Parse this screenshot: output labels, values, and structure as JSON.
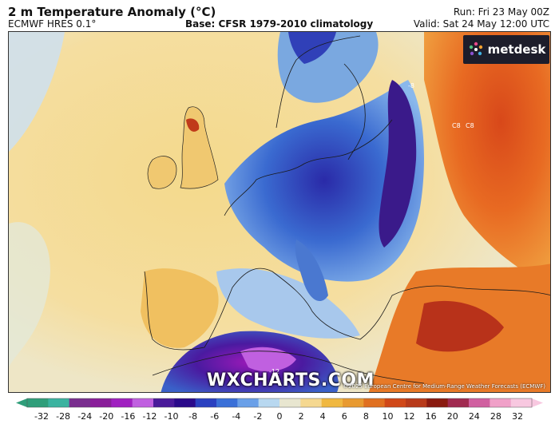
{
  "header": {
    "title": "2 m Temperature Anomaly (°C)",
    "model": "ECMWF HRES 0.1°",
    "base": "Base: CFSR 1979-2010 climatology",
    "run": "Run: Fri 23 May 00Z",
    "valid": "Valid: Sat 24 May 12:00 UTC"
  },
  "logo": {
    "text": "metdesk",
    "icon": "metdesk-logo-icon"
  },
  "watermark": "WXCHARTS.COM",
  "copyright": "©2025 European Centre for Medium-Range Weather Forecasts (ECMWF)",
  "map": {
    "contour_labels": [
      "-8",
      "C8",
      "C8",
      "-12"
    ]
  },
  "colorbar": {
    "ticks": [
      "-32",
      "-28",
      "-24",
      "-20",
      "-16",
      "-12",
      "-10",
      "-8",
      "-6",
      "-4",
      "-2",
      "0",
      "2",
      "4",
      "6",
      "8",
      "10",
      "12",
      "16",
      "20",
      "24",
      "28",
      "32"
    ],
    "colors": [
      "#2f9e7a",
      "#3bb3a0",
      "#7a2e8f",
      "#8a1e9a",
      "#a020c0",
      "#c060e0",
      "#4a1a9a",
      "#2a0a8a",
      "#2a40c0",
      "#3a70d8",
      "#6aa0e8",
      "#b8d8f0",
      "#e8e6d0",
      "#f5d890",
      "#f0b840",
      "#e89a30",
      "#e07020",
      "#d04818",
      "#b83a1a",
      "#8a1a10",
      "#a02a50",
      "#d060a0",
      "#f0a0c8",
      "#f8c8e0"
    ]
  }
}
